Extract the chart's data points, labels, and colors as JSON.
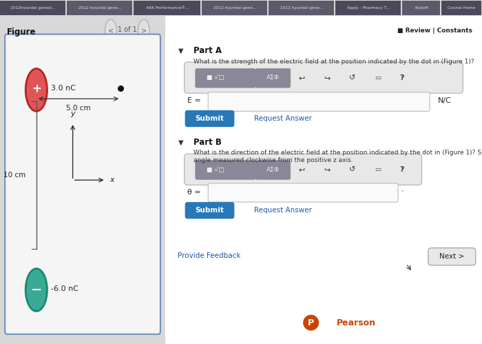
{
  "bg_color": "#d8d8d8",
  "content_bg": "#f0f0f0",
  "white_bg": "#ffffff",
  "tab_bar_color": "#4a4a5a",
  "tab_labels": [
    "2012hyundal genesi...",
    "2012 hyundal gene...",
    "ARK Performance®...",
    "2012 hyundai gene...",
    "2012 hyundai gene...",
    "Apply - Pharmacy T...",
    "Kickoff",
    "Course Home"
  ],
  "figure_title": "Figure",
  "nav_text": "1 of 1",
  "part_a_label": "Part A",
  "part_a_question": "What is the strength of the electric field at the position indicated by the dot in (Figure 1)?",
  "e_field_label": "E =",
  "e_unit": "N/C",
  "submit_text": "Submit",
  "request_answer": "Request Answer",
  "part_b_label": "Part B",
  "part_b_question": "What is the direction of the electric field at the position indicated by the dot in (Figure 1)? Specify the direction as an\nangle measured clockwise from the positive z axis.",
  "theta_label": "θ =",
  "provide_feedback": "Provide Feedback",
  "next_text": "Next >",
  "review_constants": "■ Review | Constants",
  "pearson_text": "Pearson",
  "pos_charge_label": "3.0 nC",
  "neg_charge_label": "-6.0 nC",
  "distance_label": "5.0 cm",
  "height_label": "10 cm",
  "pos_charge_color": "#e05555",
  "neg_charge_color": "#3aaa96",
  "toolbar_bg": "#d0d4dc",
  "toolbar_btn_bg": "#b0b8c4",
  "input_border": "#aaaaaa",
  "button_color": "#2878b8",
  "link_color": "#2255aa",
  "figure_border": "#7090bb",
  "cursor_color": "#555555"
}
